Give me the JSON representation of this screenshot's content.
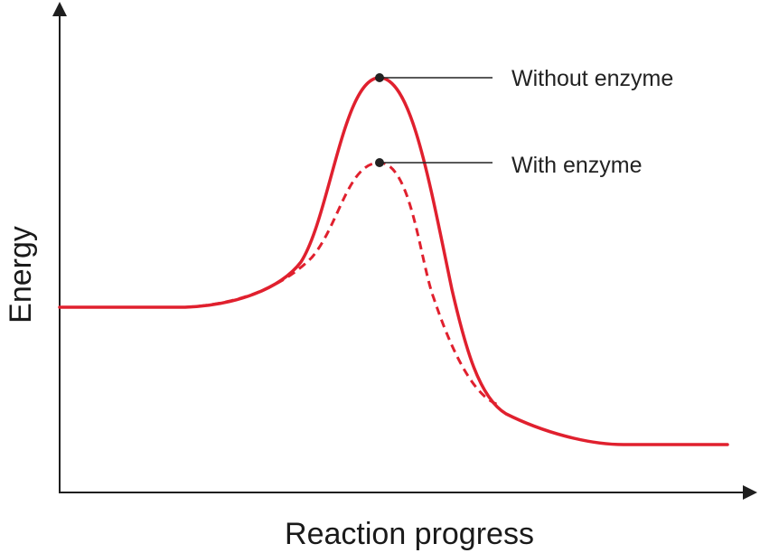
{
  "axes": {
    "y_label": "Energy",
    "x_label": "Reaction progress"
  },
  "curves": {
    "without_enzyme_label": "Without enzyme",
    "with_enzyme_label": "With enzyme"
  },
  "colors": {
    "curve": "#e0202e",
    "axis": "#1f1f1f",
    "text": "#222222"
  }
}
